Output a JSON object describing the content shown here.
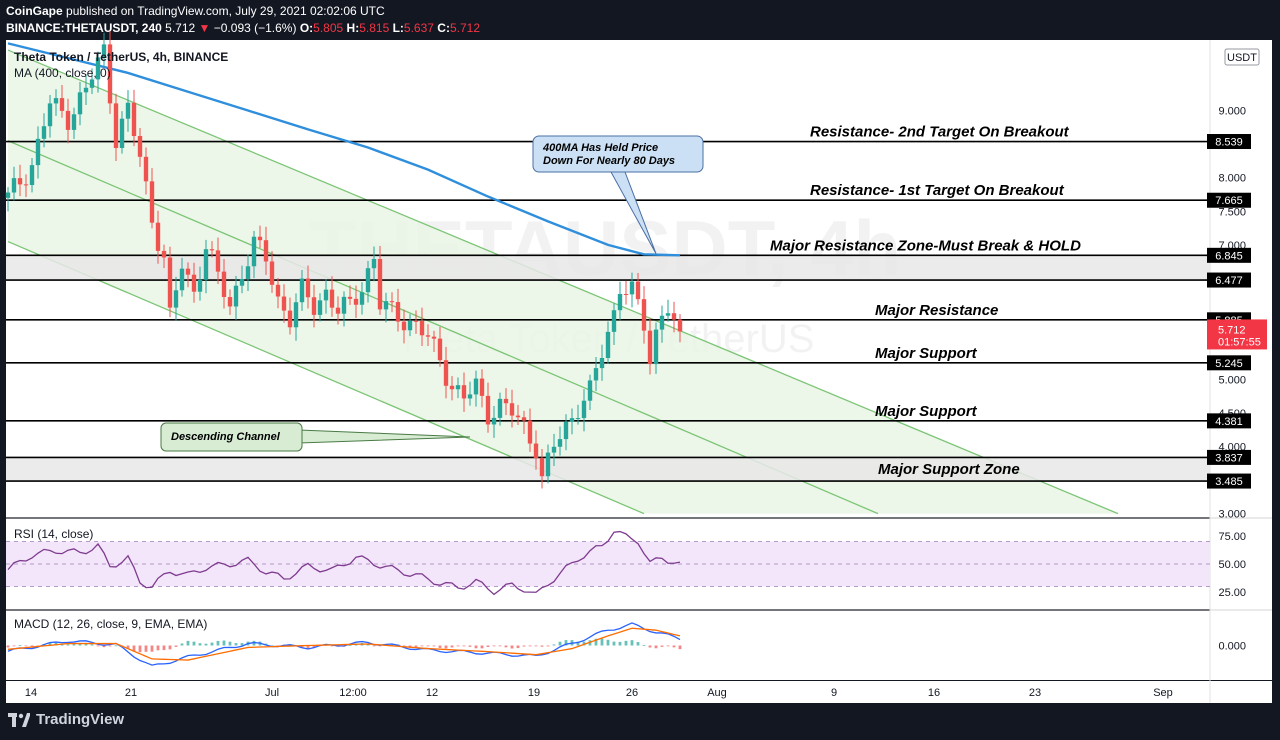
{
  "header": {
    "publisher": "CoinGape",
    "published_text": "published on TradingView.com, July 29, 2021 02:02:06 UTC",
    "symbol": "BINANCE:THETAUSDT, 240",
    "last": "5.712",
    "change": "−0.093 (−1.6%)",
    "o_label": "O:",
    "o": "5.805",
    "h_label": "H:",
    "h": "5.815",
    "l_label": "L:",
    "l": "5.637",
    "c_label": "C:",
    "c": "5.712"
  },
  "legend": {
    "title": "Theta Token / TetherUS, 4h, BINANCE",
    "ma": "MA (400, close, 0)",
    "rsi": "RSI (14, close)",
    "macd": "MACD (12, 26, close, 9, EMA, EMA)"
  },
  "watermark": {
    "symbol": "THETAUSDT, 4h",
    "name": "Theta Token / TetherUS"
  },
  "currency": "USDT",
  "footer": {
    "brand": "TradingView"
  },
  "colors": {
    "bg": "#ffffff",
    "up": "#26a69a",
    "down": "#ef5350",
    "ma": "#2f8fdc",
    "channel": "#7cc576",
    "channel_fill": "#e8f5e4",
    "rsi": "#7e3b8f",
    "rsi_band": "#f3e6fa",
    "macd": "#2962ff",
    "signal": "#ff6d00",
    "price_tag": "#f23645"
  },
  "chart_data": [
    {
      "type": "candlestick",
      "pane": "price",
      "ylim": [
        2.95,
        10.05
      ],
      "y_ticks": [
        "9.000",
        "8.000",
        "7.500",
        "7.000",
        "5.000",
        "4.500",
        "4.000",
        "3.000"
      ],
      "x_ticks": [
        "14",
        "21",
        "Jul",
        "12:00",
        "12",
        "19",
        "26",
        "Aug",
        "9",
        "16",
        "23",
        "Sep"
      ],
      "horizontal_levels": [
        {
          "value": 8.539,
          "label": "8.539",
          "annotation": "Resistance- 2nd Target On Breakout"
        },
        {
          "value": 7.665,
          "label": "7.665",
          "annotation": "Resistance- 1st Target On Breakout"
        },
        {
          "value": 6.845,
          "label": "6.845",
          "annotation": "Major Resistance Zone-Must Break & HOLD"
        },
        {
          "value": 6.477,
          "label": "6.477",
          "annotation": ""
        },
        {
          "value": 5.885,
          "label": "5.885",
          "annotation": "Major Resistance"
        },
        {
          "value": 5.245,
          "label": "5.245",
          "annotation": "Major Support"
        },
        {
          "value": 4.381,
          "label": "4.381",
          "annotation": "Major Support"
        },
        {
          "value": 3.837,
          "label": "3.837",
          "annotation": "Major Support Zone"
        },
        {
          "value": 3.485,
          "label": "3.485",
          "annotation": ""
        }
      ],
      "zones": [
        [
          6.477,
          6.845
        ],
        [
          3.485,
          3.837
        ]
      ],
      "last_price": {
        "value": 5.712,
        "label": "5.712",
        "countdown": "01:57:55"
      },
      "callouts": [
        "400MA Has Held Price Down For Nearly 80 Days",
        "Descending Channel"
      ],
      "price_path": [
        [
          0,
          7.7
        ],
        [
          4,
          8.2
        ],
        [
          7,
          9.1
        ],
        [
          10,
          8.9
        ],
        [
          13,
          9.3
        ],
        [
          16,
          9.9
        ],
        [
          18,
          8.6
        ],
        [
          20,
          9.0
        ],
        [
          22,
          8.3
        ],
        [
          24,
          7.4
        ],
        [
          26,
          6.8
        ],
        [
          27,
          5.9
        ],
        [
          29,
          6.7
        ],
        [
          31,
          6.3
        ],
        [
          33,
          7.0
        ],
        [
          35,
          6.5
        ],
        [
          37,
          6.1
        ],
        [
          39,
          6.6
        ],
        [
          41,
          7.0
        ],
        [
          43,
          6.8
        ],
        [
          45,
          6.2
        ],
        [
          47,
          5.9
        ],
        [
          49,
          6.3
        ],
        [
          51,
          6.1
        ],
        [
          53,
          6.3
        ],
        [
          55,
          6.0
        ],
        [
          57,
          6.1
        ],
        [
          59,
          6.4
        ],
        [
          61,
          6.8
        ],
        [
          62,
          6.1
        ],
        [
          64,
          6.0
        ],
        [
          66,
          5.9
        ],
        [
          68,
          5.8
        ],
        [
          70,
          5.6
        ],
        [
          72,
          5.3
        ],
        [
          74,
          4.9
        ],
        [
          76,
          4.7
        ],
        [
          78,
          4.9
        ],
        [
          80,
          4.5
        ],
        [
          82,
          4.6
        ],
        [
          84,
          4.5
        ],
        [
          86,
          4.3
        ],
        [
          88,
          4.0
        ],
        [
          89,
          3.5
        ],
        [
          91,
          4.0
        ],
        [
          93,
          4.3
        ],
        [
          95,
          4.6
        ],
        [
          97,
          4.8
        ],
        [
          99,
          5.4
        ],
        [
          101,
          6.0
        ],
        [
          102,
          6.4
        ],
        [
          104,
          6.3
        ],
        [
          106,
          5.8
        ],
        [
          107,
          5.3
        ],
        [
          108,
          5.7
        ],
        [
          109,
          6.0
        ],
        [
          110,
          6.1
        ],
        [
          111,
          5.8
        ],
        [
          112,
          5.712
        ]
      ],
      "ma400": [
        [
          0,
          10.0
        ],
        [
          10,
          9.78
        ],
        [
          20,
          9.56
        ],
        [
          30,
          9.28
        ],
        [
          40,
          9.0
        ],
        [
          50,
          8.72
        ],
        [
          60,
          8.45
        ],
        [
          70,
          8.12
        ],
        [
          80,
          7.72
        ],
        [
          90,
          7.35
        ],
        [
          100,
          7.0
        ],
        [
          106,
          6.86
        ],
        [
          112,
          6.845
        ]
      ],
      "channel_lines": [
        {
          "name": "upper",
          "from": [
            0,
            9.9
          ],
          "to": [
            185,
            3.0
          ]
        },
        {
          "name": "middle",
          "from": [
            0,
            8.55
          ],
          "to": [
            145,
            3.0
          ]
        },
        {
          "name": "lower",
          "from": [
            0,
            7.05
          ],
          "to": [
            106,
            3.0
          ]
        }
      ]
    },
    {
      "type": "line",
      "pane": "rsi",
      "ylim": [
        10,
        90
      ],
      "y_ticks": [
        "75.00",
        "50.00",
        "25.00"
      ],
      "band": [
        30,
        70
      ],
      "series": [
        {
          "values": [
            [
              0,
              45
            ],
            [
              4,
              58
            ],
            [
              8,
              62
            ],
            [
              12,
              60
            ],
            [
              15,
              66
            ],
            [
              17,
              48
            ],
            [
              20,
              55
            ],
            [
              22,
              34
            ],
            [
              24,
              30
            ],
            [
              27,
              44
            ],
            [
              30,
              40
            ],
            [
              33,
              47
            ],
            [
              36,
              49
            ],
            [
              40,
              53
            ],
            [
              43,
              43
            ],
            [
              46,
              37
            ],
            [
              50,
              48
            ],
            [
              54,
              44
            ],
            [
              58,
              56
            ],
            [
              62,
              49
            ],
            [
              65,
              44
            ],
            [
              68,
              40
            ],
            [
              72,
              33
            ],
            [
              75,
              29
            ],
            [
              78,
              34
            ],
            [
              81,
              26
            ],
            [
              84,
              31
            ],
            [
              86,
              28
            ],
            [
              88,
              22
            ],
            [
              90,
              33
            ],
            [
              92,
              41
            ],
            [
              95,
              55
            ],
            [
              99,
              66
            ],
            [
              101,
              80
            ],
            [
              103,
              74
            ],
            [
              105,
              71
            ],
            [
              107,
              50
            ],
            [
              109,
              56
            ],
            [
              112,
              49
            ]
          ]
        }
      ]
    },
    {
      "type": "line",
      "pane": "macd",
      "ylim": [
        -0.9,
        0.9
      ],
      "y_ticks": [
        "0.000"
      ],
      "series": [
        {
          "values": [
            [
              0,
              -0.15
            ],
            [
              10,
              0.12
            ],
            [
              18,
              0.02
            ],
            [
              24,
              -0.55
            ],
            [
              30,
              -0.3
            ],
            [
              40,
              0.05
            ],
            [
              50,
              -0.05
            ],
            [
              60,
              0.08
            ],
            [
              70,
              -0.12
            ],
            [
              80,
              -0.2
            ],
            [
              88,
              -0.28
            ],
            [
              94,
              0.05
            ],
            [
              100,
              0.4
            ],
            [
              104,
              0.55
            ],
            [
              108,
              0.35
            ],
            [
              112,
              0.18
            ]
          ]
        },
        {
          "values": [
            [
              0,
              -0.1
            ],
            [
              10,
              0.05
            ],
            [
              18,
              0.05
            ],
            [
              24,
              -0.35
            ],
            [
              30,
              -0.38
            ],
            [
              40,
              -0.05
            ],
            [
              50,
              0.0
            ],
            [
              60,
              0.04
            ],
            [
              70,
              -0.08
            ],
            [
              80,
              -0.16
            ],
            [
              88,
              -0.24
            ],
            [
              94,
              -0.08
            ],
            [
              100,
              0.25
            ],
            [
              104,
              0.45
            ],
            [
              108,
              0.4
            ],
            [
              112,
              0.25
            ]
          ]
        }
      ]
    }
  ]
}
